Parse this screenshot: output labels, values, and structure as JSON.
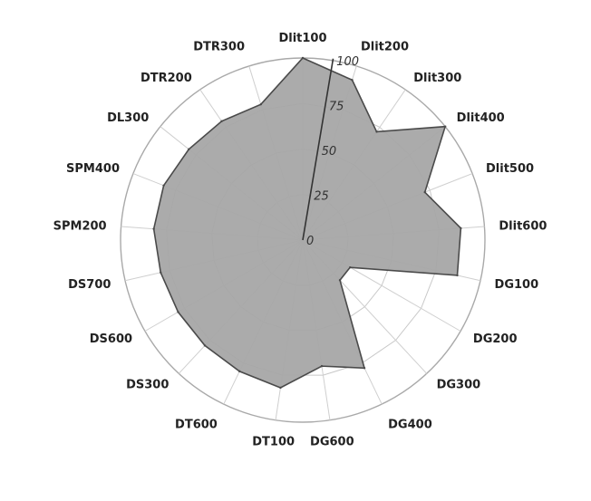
{
  "chart_data": {
    "type": "radar",
    "categories": [
      "Dlit100",
      "Dlit200",
      "Dlit300",
      "Dlit400",
      "Dlit500",
      "Dlit600",
      "DG100",
      "DG200",
      "DG300",
      "DG400",
      "DG600",
      "DT100",
      "DT600",
      "DS300",
      "DS600",
      "DS700",
      "SPM200",
      "SPM400",
      "DL300",
      "DTR200",
      "DTR300"
    ],
    "series": [
      {
        "values": [
          100,
          92,
          72,
          100,
          72,
          87,
          87,
          30,
          30,
          78,
          70,
          82,
          80,
          79,
          79,
          80,
          82,
          82,
          80,
          79,
          78
        ]
      }
    ],
    "rmax": 100,
    "ticks": [
      0,
      25,
      50,
      75,
      100
    ],
    "colors": {
      "fill": "#a7a7a7",
      "stroke": "#4a4a4a",
      "axis": "#333333"
    }
  }
}
